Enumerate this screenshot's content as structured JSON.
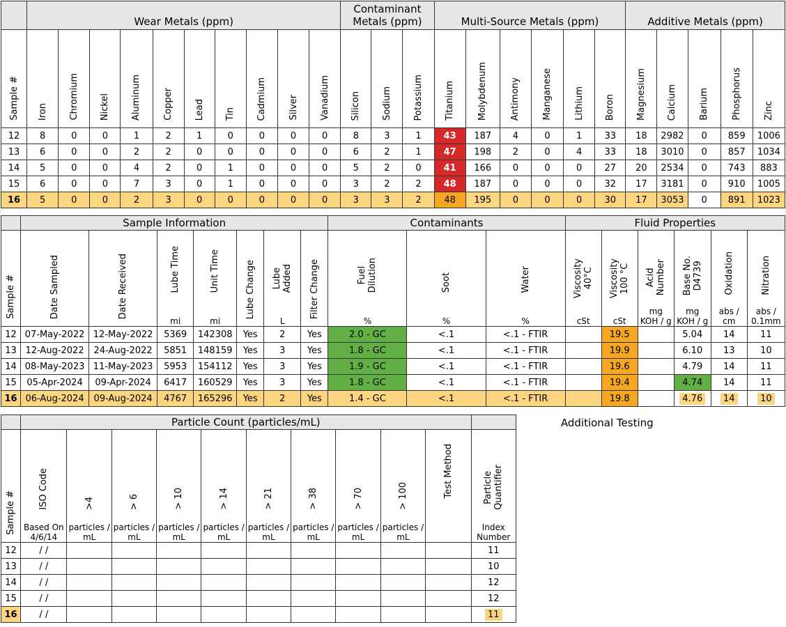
{
  "metals_table": {
    "groups": {
      "wear": "Wear Metals (ppm)",
      "contaminant_line1": "Contaminant",
      "contaminant_line2": "Metals (ppm)",
      "multi": "Multi-Source Metals (ppm)",
      "additive": "Additive Metals (ppm)"
    },
    "columns": [
      "Sample #",
      "Iron",
      "Chromium",
      "Nickel",
      "Aluminum",
      "Copper",
      "Lead",
      "Tin",
      "Cadmium",
      "Silver",
      "Vanadium",
      "Silicon",
      "Sodium",
      "Potassium",
      "Titanium",
      "Molybdenum",
      "Antimony",
      "Manganese",
      "Lithium",
      "Boron",
      "Magnesium",
      "Calcium",
      "Barium",
      "Phosphorus",
      "Zinc"
    ],
    "rows": [
      [
        "12",
        "8",
        "0",
        "0",
        "1",
        "2",
        "1",
        "0",
        "0",
        "0",
        "0",
        "8",
        "3",
        "1",
        "43",
        "187",
        "4",
        "0",
        "1",
        "33",
        "18",
        "2982",
        "0",
        "859",
        "1006"
      ],
      [
        "13",
        "6",
        "0",
        "0",
        "2",
        "2",
        "0",
        "0",
        "0",
        "0",
        "0",
        "6",
        "2",
        "1",
        "47",
        "198",
        "2",
        "0",
        "4",
        "33",
        "18",
        "3010",
        "0",
        "857",
        "1034"
      ],
      [
        "14",
        "5",
        "0",
        "0",
        "4",
        "2",
        "0",
        "1",
        "0",
        "0",
        "0",
        "5",
        "2",
        "0",
        "41",
        "166",
        "0",
        "0",
        "0",
        "27",
        "20",
        "2534",
        "0",
        "743",
        "883"
      ],
      [
        "15",
        "6",
        "0",
        "0",
        "7",
        "3",
        "0",
        "1",
        "0",
        "0",
        "0",
        "3",
        "2",
        "2",
        "48",
        "187",
        "0",
        "0",
        "0",
        "32",
        "17",
        "3181",
        "0",
        "910",
        "1005"
      ],
      [
        "16",
        "5",
        "0",
        "0",
        "2",
        "3",
        "0",
        "0",
        "0",
        "0",
        "0",
        "3",
        "3",
        "2",
        "48",
        "195",
        "0",
        "0",
        "0",
        "30",
        "17",
        "3053",
        "0",
        "891",
        "1023"
      ]
    ]
  },
  "sample_table": {
    "groups": {
      "info": "Sample Information",
      "contaminants": "Contaminants",
      "fluid": "Fluid Properties"
    },
    "headers": {
      "sample": "Sample #",
      "date_sampled": "Date Sampled",
      "date_received": "Date  Received",
      "lube_time": "Lube Time",
      "lube_time_unit": "mi",
      "unit_time": "Unit Time",
      "unit_time_unit": "mi",
      "lube_change": "Lube Change",
      "lube_added_1": "Lube",
      "lube_added_2": "Added",
      "lube_added_unit": "L",
      "filter_change": "Filter Change",
      "fuel_1": "Fuel",
      "fuel_2": "Dilution",
      "fuel_unit": "%",
      "soot": "Soot",
      "soot_unit": "%",
      "water": "Water",
      "water_unit": "%",
      "visc40_1": "Viscosity",
      "visc40_2": "40°C",
      "visc40_unit": "cSt",
      "visc100_1": "Viscosity",
      "visc100_2": "100 °C",
      "visc100_unit": "cSt",
      "acid_1": "Acid",
      "acid_2": "Number",
      "acid_unit_1": "mg",
      "acid_unit_2": "KOH / g",
      "base_1": "Base No.",
      "base_2": "D4739",
      "base_unit_1": "mg",
      "base_unit_2": "KOH / g",
      "oxidation": "Oxidation",
      "oxidation_unit_1": "abs /",
      "oxidation_unit_2": "cm",
      "nitration": "Nitration",
      "nitration_unit_1": "abs /",
      "nitration_unit_2": "0.1mm"
    },
    "rows": [
      {
        "sample": "12",
        "date_sampled": "07-May-2022",
        "date_received": "12-May-2022",
        "lube_time": "5369",
        "unit_time": "142308",
        "lube_change": "Yes",
        "lube_added": "2",
        "filter_change": "Yes",
        "fuel": "2.0 - GC",
        "soot": "<.1",
        "water": "<.1 - FTIR",
        "visc40": "",
        "visc100": "19.5",
        "acid": "",
        "base": "5.04",
        "oxidation": "14",
        "nitration": "11"
      },
      {
        "sample": "13",
        "date_sampled": "12-Aug-2022",
        "date_received": "24-Aug-2022",
        "lube_time": "5851",
        "unit_time": "148159",
        "lube_change": "Yes",
        "lube_added": "3",
        "filter_change": "Yes",
        "fuel": "1.8 - GC",
        "soot": "<.1",
        "water": "<.1 - FTIR",
        "visc40": "",
        "visc100": "19.9",
        "acid": "",
        "base": "6.10",
        "oxidation": "13",
        "nitration": "10"
      },
      {
        "sample": "14",
        "date_sampled": "08-May-2023",
        "date_received": "11-May-2023",
        "lube_time": "5953",
        "unit_time": "154112",
        "lube_change": "Yes",
        "lube_added": "3",
        "filter_change": "Yes",
        "fuel": "1.9 - GC",
        "soot": "<.1",
        "water": "<.1 - FTIR",
        "visc40": "",
        "visc100": "19.6",
        "acid": "",
        "base": "4.79",
        "oxidation": "14",
        "nitration": "11"
      },
      {
        "sample": "15",
        "date_sampled": "05-Apr-2024",
        "date_received": "09-Apr-2024",
        "lube_time": "6417",
        "unit_time": "160529",
        "lube_change": "Yes",
        "lube_added": "3",
        "filter_change": "Yes",
        "fuel": "1.8 - GC",
        "soot": "<.1",
        "water": "<.1 - FTIR",
        "visc40": "",
        "visc100": "19.4",
        "acid": "",
        "base": "4.74",
        "oxidation": "14",
        "nitration": "11"
      },
      {
        "sample": "16",
        "date_sampled": "06-Aug-2024",
        "date_received": "09-Aug-2024",
        "lube_time": "4767",
        "unit_time": "165296",
        "lube_change": "Yes",
        "lube_added": "2",
        "filter_change": "Yes",
        "fuel": "1.4 - GC",
        "soot": "<.1",
        "water": "<.1 - FTIR",
        "visc40": "",
        "visc100": "19.8",
        "acid": "",
        "base": "4.76",
        "oxidation": "14",
        "nitration": "10"
      }
    ]
  },
  "particle_table": {
    "groups": {
      "particle": "Particle Count (particles/mL)",
      "additional": "Additional Testing"
    },
    "headers": {
      "sample": "Sample #",
      "iso": "ISO Code",
      "iso_unit_1": "Based On",
      "iso_unit_2": "4/6/14",
      "sizes": [
        ">4",
        "> 6",
        "> 10",
        "> 14",
        "> 21",
        "> 38",
        "> 70",
        "> 100"
      ],
      "size_unit_1": "particles /",
      "size_unit_2": "mL",
      "test_method": "Test Method",
      "pq_1": "Particle",
      "pq_2": "Quantifier",
      "pq_unit_1": "Index",
      "pq_unit_2": "Number"
    },
    "rows": [
      {
        "sample": "12",
        "iso": "/ /",
        "pq": "11"
      },
      {
        "sample": "13",
        "iso": "/ /",
        "pq": "10"
      },
      {
        "sample": "14",
        "iso": "/ /",
        "pq": "12"
      },
      {
        "sample": "15",
        "iso": "/ /",
        "pq": "12"
      },
      {
        "sample": "16",
        "iso": "/ /",
        "pq": "11"
      }
    ]
  },
  "colors": {
    "critical": "#d62a2a",
    "caution": "#f5a623",
    "good": "#62b045",
    "highlight": "#fcd581",
    "header_gray": "#e6e6e6"
  }
}
